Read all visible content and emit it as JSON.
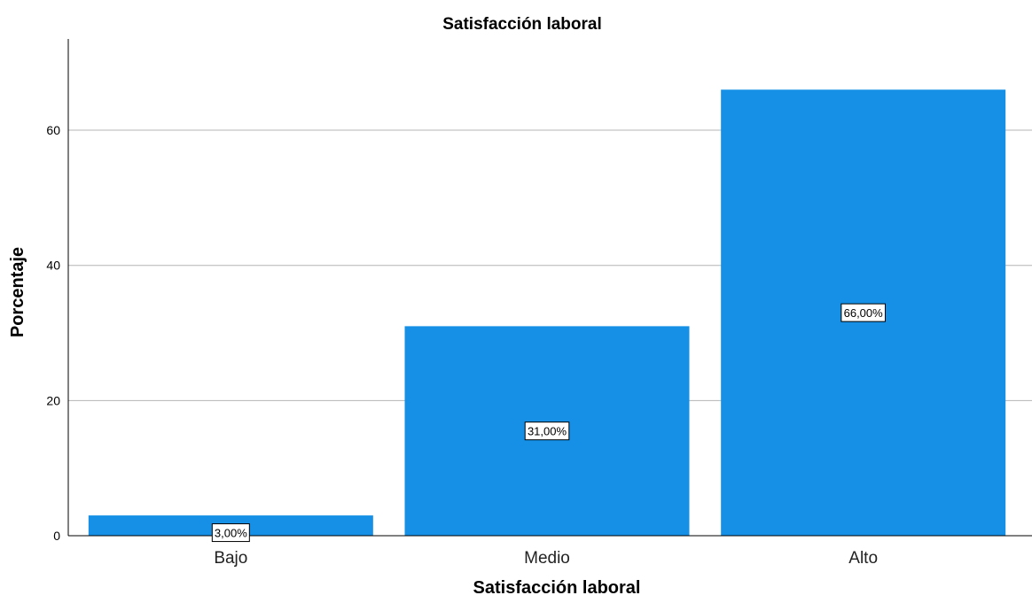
{
  "chart_data": {
    "type": "bar",
    "title": "Satisfacción laboral",
    "xlabel": "Satisfacción laboral",
    "ylabel": "Porcentaje",
    "categories": [
      "Bajo",
      "Medio",
      "Alto"
    ],
    "values": [
      3.0,
      31.0,
      66.0
    ],
    "data_labels": [
      "3,00%",
      "31,00%",
      "66,00%"
    ],
    "ylim": [
      0,
      73.5
    ],
    "yticks": [
      0,
      20,
      40,
      60
    ],
    "ytick_labels": [
      "0",
      "20",
      "40",
      "60"
    ],
    "grid": true,
    "legend": "none",
    "bar_color": "#1590E6"
  }
}
